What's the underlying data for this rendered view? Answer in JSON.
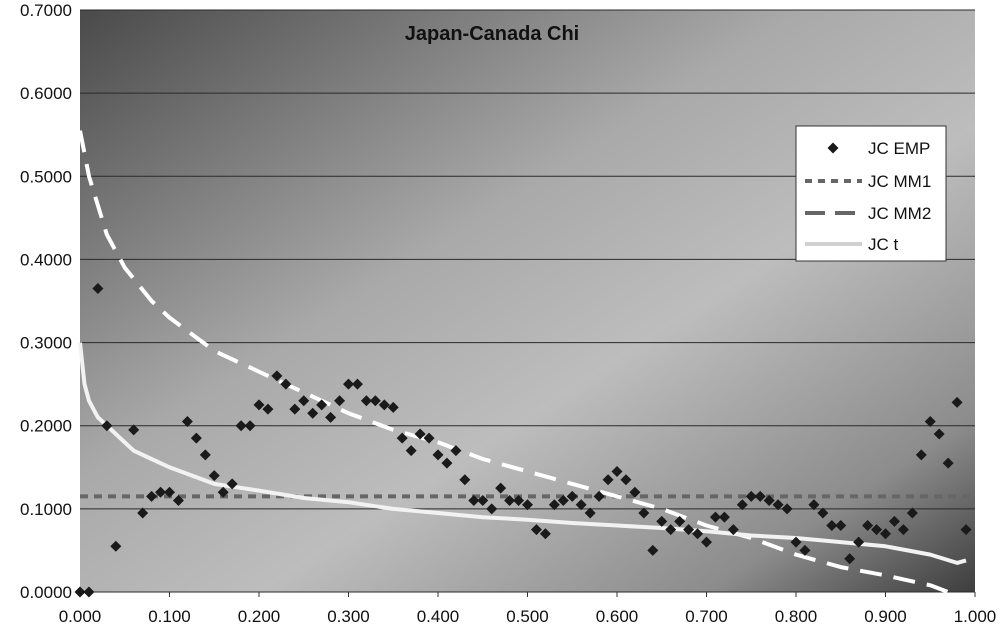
{
  "chart_data": {
    "type": "line",
    "title": "Japan-Canada Chi",
    "xlabel": "",
    "ylabel": "",
    "xlim": [
      0,
      1
    ],
    "ylim": [
      0,
      0.7
    ],
    "x_ticks": [
      "0.000",
      "0.100",
      "0.200",
      "0.300",
      "0.400",
      "0.500",
      "0.600",
      "0.700",
      "0.800",
      "0.900",
      "1.000"
    ],
    "y_ticks": [
      "0.0000",
      "0.1000",
      "0.2000",
      "0.3000",
      "0.4000",
      "0.5000",
      "0.6000",
      "0.7000"
    ],
    "grid": "horizontal",
    "legend_position": "right",
    "series": [
      {
        "name": "JC EMP",
        "style": "markers",
        "color": "#1a1a1a",
        "points": [
          [
            0.0,
            0.0
          ],
          [
            0.01,
            0.0
          ],
          [
            0.02,
            0.365
          ],
          [
            0.03,
            0.2
          ],
          [
            0.04,
            0.055
          ],
          [
            0.06,
            0.195
          ],
          [
            0.07,
            0.095
          ],
          [
            0.08,
            0.115
          ],
          [
            0.09,
            0.12
          ],
          [
            0.1,
            0.12
          ],
          [
            0.11,
            0.11
          ],
          [
            0.12,
            0.205
          ],
          [
            0.13,
            0.185
          ],
          [
            0.14,
            0.165
          ],
          [
            0.15,
            0.14
          ],
          [
            0.16,
            0.12
          ],
          [
            0.17,
            0.13
          ],
          [
            0.18,
            0.2
          ],
          [
            0.19,
            0.2
          ],
          [
            0.2,
            0.225
          ],
          [
            0.21,
            0.22
          ],
          [
            0.22,
            0.26
          ],
          [
            0.23,
            0.25
          ],
          [
            0.24,
            0.22
          ],
          [
            0.25,
            0.23
          ],
          [
            0.26,
            0.215
          ],
          [
            0.27,
            0.225
          ],
          [
            0.28,
            0.21
          ],
          [
            0.29,
            0.23
          ],
          [
            0.3,
            0.25
          ],
          [
            0.31,
            0.25
          ],
          [
            0.32,
            0.23
          ],
          [
            0.33,
            0.23
          ],
          [
            0.34,
            0.225
          ],
          [
            0.35,
            0.222
          ],
          [
            0.36,
            0.185
          ],
          [
            0.37,
            0.17
          ],
          [
            0.38,
            0.19
          ],
          [
            0.39,
            0.185
          ],
          [
            0.4,
            0.165
          ],
          [
            0.41,
            0.155
          ],
          [
            0.42,
            0.17
          ],
          [
            0.43,
            0.135
          ],
          [
            0.44,
            0.11
          ],
          [
            0.45,
            0.11
          ],
          [
            0.46,
            0.1
          ],
          [
            0.47,
            0.125
          ],
          [
            0.48,
            0.11
          ],
          [
            0.49,
            0.11
          ],
          [
            0.5,
            0.105
          ],
          [
            0.51,
            0.075
          ],
          [
            0.52,
            0.07
          ],
          [
            0.53,
            0.105
          ],
          [
            0.54,
            0.11
          ],
          [
            0.55,
            0.115
          ],
          [
            0.56,
            0.105
          ],
          [
            0.57,
            0.095
          ],
          [
            0.58,
            0.115
          ],
          [
            0.59,
            0.135
          ],
          [
            0.6,
            0.145
          ],
          [
            0.61,
            0.135
          ],
          [
            0.62,
            0.12
          ],
          [
            0.63,
            0.095
          ],
          [
            0.64,
            0.05
          ],
          [
            0.65,
            0.085
          ],
          [
            0.66,
            0.075
          ],
          [
            0.67,
            0.085
          ],
          [
            0.68,
            0.075
          ],
          [
            0.69,
            0.07
          ],
          [
            0.7,
            0.06
          ],
          [
            0.71,
            0.09
          ],
          [
            0.72,
            0.09
          ],
          [
            0.73,
            0.075
          ],
          [
            0.74,
            0.105
          ],
          [
            0.75,
            0.115
          ],
          [
            0.76,
            0.115
          ],
          [
            0.77,
            0.11
          ],
          [
            0.78,
            0.105
          ],
          [
            0.79,
            0.1
          ],
          [
            0.8,
            0.06
          ],
          [
            0.81,
            0.05
          ],
          [
            0.82,
            0.105
          ],
          [
            0.83,
            0.095
          ],
          [
            0.84,
            0.08
          ],
          [
            0.85,
            0.08
          ],
          [
            0.86,
            0.04
          ],
          [
            0.87,
            0.06
          ],
          [
            0.88,
            0.08
          ],
          [
            0.89,
            0.075
          ],
          [
            0.9,
            0.07
          ],
          [
            0.91,
            0.085
          ],
          [
            0.92,
            0.075
          ],
          [
            0.93,
            0.095
          ],
          [
            0.94,
            0.165
          ],
          [
            0.95,
            0.205
          ],
          [
            0.96,
            0.19
          ],
          [
            0.97,
            0.155
          ],
          [
            0.98,
            0.228
          ],
          [
            0.99,
            0.075
          ]
        ]
      },
      {
        "name": "JC MM1",
        "style": "dotted",
        "color": "#666666",
        "points": [
          [
            0.0,
            0.115
          ],
          [
            1.0,
            0.115
          ]
        ]
      },
      {
        "name": "JC MM2",
        "style": "dashed",
        "color": "#ffffff",
        "legend_color": "#666666",
        "points": [
          [
            0.0,
            0.555
          ],
          [
            0.01,
            0.5
          ],
          [
            0.02,
            0.465
          ],
          [
            0.03,
            0.43
          ],
          [
            0.05,
            0.39
          ],
          [
            0.08,
            0.35
          ],
          [
            0.1,
            0.33
          ],
          [
            0.15,
            0.29
          ],
          [
            0.2,
            0.265
          ],
          [
            0.25,
            0.24
          ],
          [
            0.3,
            0.215
          ],
          [
            0.35,
            0.195
          ],
          [
            0.4,
            0.18
          ],
          [
            0.45,
            0.16
          ],
          [
            0.5,
            0.145
          ],
          [
            0.55,
            0.13
          ],
          [
            0.6,
            0.115
          ],
          [
            0.65,
            0.1
          ],
          [
            0.7,
            0.08
          ],
          [
            0.75,
            0.065
          ],
          [
            0.8,
            0.045
          ],
          [
            0.85,
            0.03
          ],
          [
            0.9,
            0.02
          ],
          [
            0.95,
            0.008
          ],
          [
            0.97,
            0.0
          ]
        ]
      },
      {
        "name": "JC t",
        "style": "solid",
        "color": "#f2f2f2",
        "points": [
          [
            0.0,
            0.3
          ],
          [
            0.005,
            0.25
          ],
          [
            0.01,
            0.23
          ],
          [
            0.02,
            0.21
          ],
          [
            0.04,
            0.19
          ],
          [
            0.06,
            0.17
          ],
          [
            0.08,
            0.16
          ],
          [
            0.1,
            0.15
          ],
          [
            0.15,
            0.13
          ],
          [
            0.2,
            0.122
          ],
          [
            0.25,
            0.113
          ],
          [
            0.3,
            0.108
          ],
          [
            0.35,
            0.1
          ],
          [
            0.4,
            0.095
          ],
          [
            0.45,
            0.09
          ],
          [
            0.5,
            0.087
          ],
          [
            0.55,
            0.083
          ],
          [
            0.6,
            0.08
          ],
          [
            0.65,
            0.077
          ],
          [
            0.7,
            0.073
          ],
          [
            0.75,
            0.068
          ],
          [
            0.8,
            0.065
          ],
          [
            0.85,
            0.06
          ],
          [
            0.9,
            0.055
          ],
          [
            0.95,
            0.045
          ],
          [
            0.98,
            0.035
          ],
          [
            0.99,
            0.038
          ]
        ]
      }
    ]
  }
}
